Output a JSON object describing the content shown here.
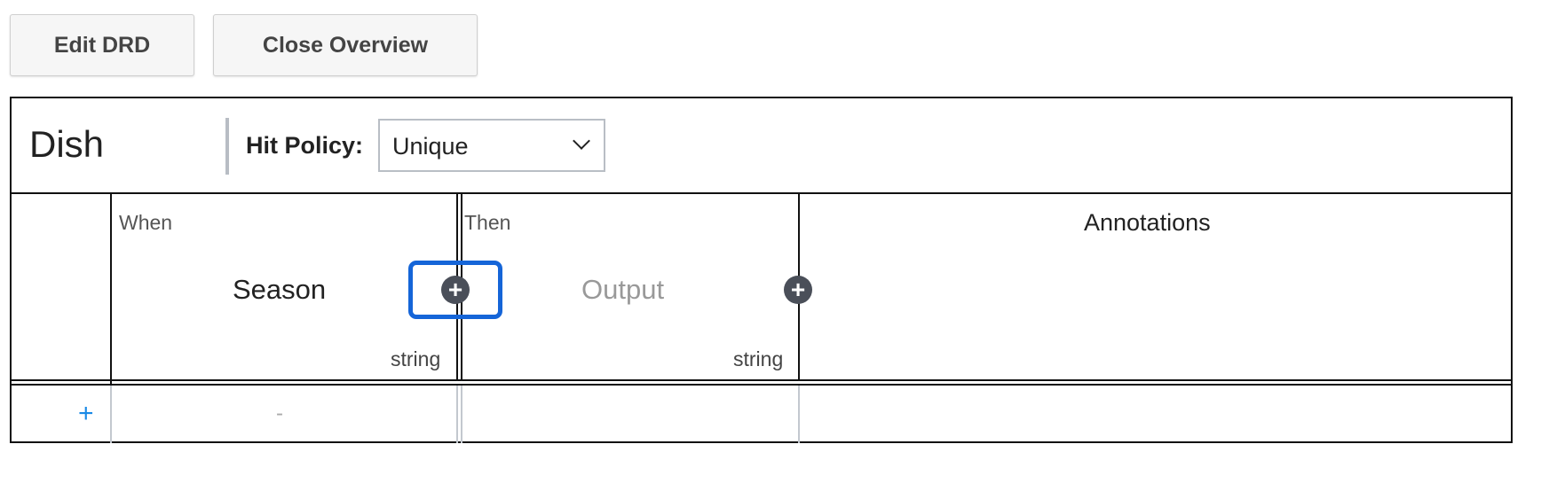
{
  "toolbar": {
    "edit_drd_label": "Edit DRD",
    "close_overview_label": "Close Overview"
  },
  "table": {
    "name": "Dish",
    "hit_policy_label": "Hit Policy:",
    "hit_policy_value": "Unique"
  },
  "columns": {
    "input": {
      "section": "When",
      "label": "Season",
      "type": "string"
    },
    "output": {
      "section": "Then",
      "label": "Output",
      "type": "string"
    },
    "annotations": {
      "label": "Annotations"
    }
  },
  "add_column_glyph": "+",
  "rows": [
    {
      "add_glyph": "+",
      "input_value": "-"
    }
  ],
  "colors": {
    "focus_ring": "#1565d8",
    "add_row": "#1a8ae6",
    "add_col_button": "#4a4f59"
  }
}
